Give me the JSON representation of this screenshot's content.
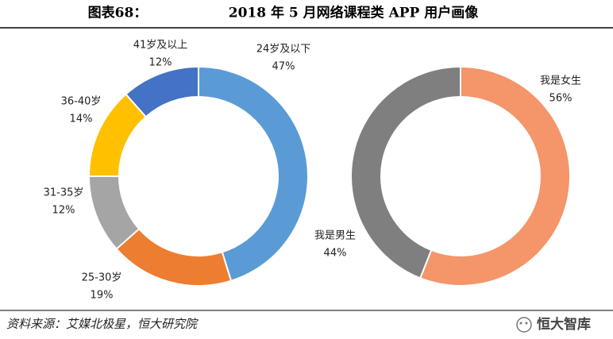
{
  "header": {
    "label": "图表68：",
    "title": "2018 年 5 月网络课程类 APP 用户画像"
  },
  "chart_data": [
    {
      "type": "pie",
      "donut": true,
      "categories": [
        "24岁及以下",
        "25-30岁",
        "31-35岁",
        "36-40岁",
        "41岁及以上"
      ],
      "values": [
        47,
        19,
        12,
        14,
        12
      ],
      "value_labels": [
        "47%",
        "19%",
        "12%",
        "14%",
        "12%"
      ],
      "colors": [
        "#5b9bd5",
        "#ed7d31",
        "#a5a5a5",
        "#ffc000",
        "#4472c4"
      ]
    },
    {
      "type": "pie",
      "donut": true,
      "categories": [
        "我是女生",
        "我是男生"
      ],
      "values": [
        56,
        44
      ],
      "value_labels": [
        "56%",
        "44%"
      ],
      "colors": [
        "#f4956a",
        "#7f7f7f"
      ]
    }
  ],
  "source": "资料来源：艾媒北极星，恒大研究院",
  "watermark": "恒大智库"
}
